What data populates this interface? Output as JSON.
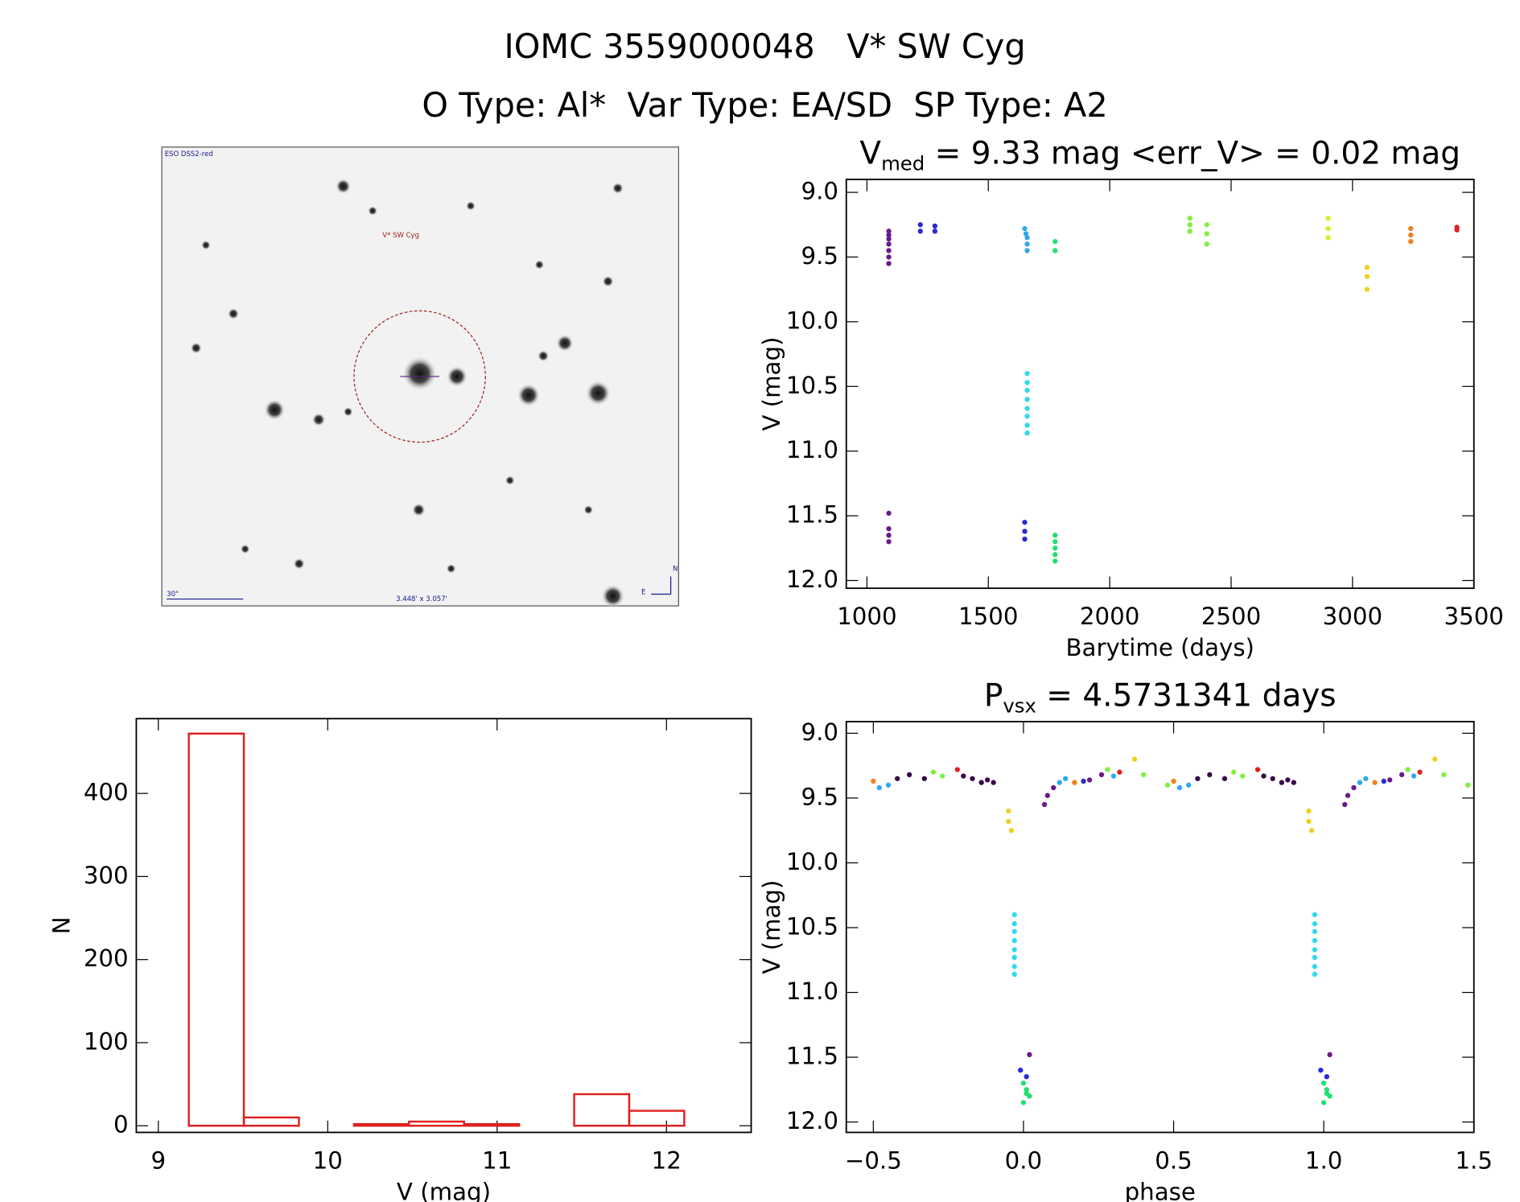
{
  "header": {
    "title": "IOMC 3559000048   V* SW Cyg",
    "subtitle": "O Type: Al*  Var Type: EA/SD  SP Type: A2"
  },
  "image": {
    "survey": "ESO DSS2-red",
    "target": "V* SW Cyg",
    "scale": "30\"",
    "fov": "3.448' x 3.057'",
    "north": "N",
    "east": "E"
  },
  "chart_data": [
    {
      "type": "scatter",
      "title": "V",
      "title_sub": "med",
      "title_rest": " = 9.33 mag <err_V> = 0.02 mag",
      "x_label": "Barytime (days)",
      "y_label": "V (mag)",
      "xlim": [
        915,
        3500
      ],
      "ylim": [
        8.9,
        12.06
      ],
      "y_inverted": true,
      "xticks": [
        1000,
        1500,
        2000,
        2500,
        3000,
        3500
      ],
      "yticks": [
        {
          "value": 9,
          "label": "9.0"
        },
        9.5,
        {
          "value": 10,
          "label": "10.0"
        },
        10.5,
        {
          "value": 11,
          "label": "11.0"
        },
        11.5,
        {
          "value": 12,
          "label": "12.0"
        }
      ],
      "series": [
        {
          "color": "#6a1a8a",
          "x": [
            1090,
            1090,
            1090,
            1090,
            1090,
            1090,
            1090,
            1090,
            1090,
            1090,
            1090
          ],
          "values": [
            9.3,
            9.33,
            9.36,
            9.4,
            9.45,
            9.5,
            9.55,
            11.48,
            11.6,
            11.65,
            11.7
          ]
        },
        {
          "color": "#2a2ad0",
          "x": [
            1220,
            1220,
            1280,
            1280,
            1650,
            1650,
            1650
          ],
          "values": [
            9.25,
            9.3,
            9.26,
            9.3,
            11.55,
            11.62,
            11.68
          ]
        },
        {
          "color": "#30a8f0",
          "x": [
            1650,
            1655,
            1660,
            1660,
            1660
          ],
          "values": [
            9.28,
            9.32,
            9.35,
            9.4,
            9.45
          ]
        },
        {
          "color": "#30d8f0",
          "x": [
            1660,
            1660,
            1660,
            1660,
            1660,
            1660,
            1660,
            1660
          ],
          "values": [
            10.4,
            10.47,
            10.53,
            10.6,
            10.67,
            10.73,
            10.8,
            10.86
          ]
        },
        {
          "color": "#20e070",
          "x": [
            1775,
            1775,
            1775,
            1775,
            1775,
            1775,
            1775
          ],
          "values": [
            9.38,
            9.45,
            11.65,
            11.7,
            11.75,
            11.8,
            11.85
          ]
        },
        {
          "color": "#80f040",
          "x": [
            2330,
            2330,
            2330,
            2400,
            2400,
            2400
          ],
          "values": [
            9.2,
            9.25,
            9.3,
            9.25,
            9.32,
            9.4
          ]
        },
        {
          "color": "#d8f020",
          "x": [
            2900,
            2900,
            2900
          ],
          "values": [
            9.2,
            9.28,
            9.35
          ]
        },
        {
          "color": "#f0d020",
          "x": [
            3060,
            3060,
            3060
          ],
          "values": [
            9.58,
            9.65,
            9.75
          ]
        },
        {
          "color": "#f08020",
          "x": [
            3240,
            3240,
            3240
          ],
          "values": [
            9.28,
            9.33,
            9.38
          ]
        },
        {
          "color": "#e02020",
          "x": [
            3430,
            3430
          ],
          "values": [
            9.27,
            9.29
          ]
        }
      ]
    },
    {
      "type": "scatter",
      "title": "P",
      "title_sub": "vsx",
      "title_rest": " = 4.5731341 days",
      "x_label": "phase",
      "y_label": "V (mag)",
      "xlim": [
        -0.59,
        1.5
      ],
      "ylim": [
        8.91,
        12.08
      ],
      "y_inverted": true,
      "xticks": [
        {
          "value": -0.5,
          "label": "−0.5"
        },
        {
          "value": 0,
          "label": "0.0"
        },
        0.5,
        {
          "value": 1,
          "label": "1.0"
        },
        1.5
      ],
      "yticks": [
        {
          "value": 9,
          "label": "9.0"
        },
        9.5,
        {
          "value": 10,
          "label": "10.0"
        },
        10.5,
        {
          "value": 11,
          "label": "11.0"
        },
        11.5,
        {
          "value": 12,
          "label": "12.0"
        }
      ],
      "series": [
        {
          "color": "#3a0a4a",
          "x": [
            -0.42,
            -0.38,
            -0.33,
            -0.2,
            -0.17,
            -0.14,
            -0.12,
            -0.1,
            0.58,
            0.62,
            0.67,
            0.8,
            0.83,
            0.86,
            0.88,
            0.9
          ],
          "values": [
            9.35,
            9.32,
            9.35,
            9.33,
            9.35,
            9.38,
            9.36,
            9.38,
            9.35,
            9.32,
            9.35,
            9.33,
            9.35,
            9.38,
            9.36,
            9.38
          ]
        },
        {
          "color": "#6a1a8a",
          "x": [
            0.07,
            0.08,
            0.1,
            0.22,
            0.26,
            1.07,
            1.08,
            1.1,
            1.22,
            1.26,
            0.02,
            1.02
          ],
          "values": [
            9.55,
            9.48,
            9.42,
            9.36,
            9.32,
            9.55,
            9.48,
            9.42,
            9.36,
            9.32,
            11.48,
            11.48
          ]
        },
        {
          "color": "#2a2ad0",
          "x": [
            -0.01,
            0.01,
            0.2,
            0.99,
            1.01,
            1.2
          ],
          "values": [
            11.6,
            11.65,
            9.37,
            11.6,
            11.65,
            9.37
          ]
        },
        {
          "color": "#30d8f0",
          "x": [
            -0.03,
            -0.03,
            -0.03,
            -0.03,
            -0.03,
            -0.03,
            -0.03,
            -0.03,
            0.97,
            0.97,
            0.97,
            0.97,
            0.97,
            0.97,
            0.97,
            0.97
          ],
          "values": [
            10.4,
            10.47,
            10.53,
            10.6,
            10.67,
            10.73,
            10.8,
            10.86,
            10.4,
            10.47,
            10.53,
            10.6,
            10.67,
            10.73,
            10.8,
            10.86
          ]
        },
        {
          "color": "#30a8f0",
          "x": [
            -0.48,
            -0.45,
            0.12,
            0.14,
            0.3,
            0.52,
            0.55,
            1.12,
            1.14,
            1.3
          ],
          "values": [
            9.42,
            9.4,
            9.38,
            9.35,
            9.33,
            9.42,
            9.4,
            9.38,
            9.35,
            9.33
          ]
        },
        {
          "color": "#20e070",
          "x": [
            0,
            0.01,
            0.02,
            0,
            0.01,
            1,
            1.01,
            1.02,
            1,
            1.01
          ],
          "values": [
            11.7,
            11.75,
            11.8,
            11.85,
            11.78,
            11.7,
            11.75,
            11.8,
            11.85,
            11.78
          ]
        },
        {
          "color": "#80f040",
          "x": [
            -0.3,
            -0.27,
            0.28,
            0.4,
            0.48,
            0.7,
            0.73,
            1.28,
            1.4,
            1.48
          ],
          "values": [
            9.3,
            9.33,
            9.28,
            9.32,
            9.4,
            9.3,
            9.33,
            9.28,
            9.32,
            9.4
          ]
        },
        {
          "color": "#f0d020",
          "x": [
            -0.05,
            -0.05,
            -0.04,
            0.95,
            0.95,
            0.96,
            0.37,
            1.37
          ],
          "values": [
            9.6,
            9.68,
            9.75,
            9.6,
            9.68,
            9.75,
            9.2,
            9.2
          ]
        },
        {
          "color": "#f08020",
          "x": [
            -0.5,
            0.17,
            0.5,
            1.17
          ],
          "values": [
            9.37,
            9.38,
            9.37,
            9.38
          ]
        },
        {
          "color": "#e02020",
          "x": [
            -0.22,
            0.32,
            0.78,
            1.32
          ],
          "values": [
            9.28,
            9.3,
            9.28,
            9.3
          ]
        }
      ]
    },
    {
      "type": "histogram",
      "x_label": "V (mag)",
      "y_label": "N",
      "color": "#e02020",
      "bins": [
        9.18,
        9.505,
        9.83,
        10.155,
        10.48,
        10.805,
        11.13,
        11.455,
        11.78,
        12.105
      ],
      "values": [
        472,
        10,
        0,
        2,
        5,
        2,
        0,
        38,
        18
      ],
      "xlim": [
        8.87,
        12.5
      ],
      "ylim": [
        -8,
        490
      ],
      "xticks": [
        9,
        10,
        11,
        12
      ],
      "yticks": [
        0,
        100,
        200,
        300,
        400
      ]
    }
  ]
}
